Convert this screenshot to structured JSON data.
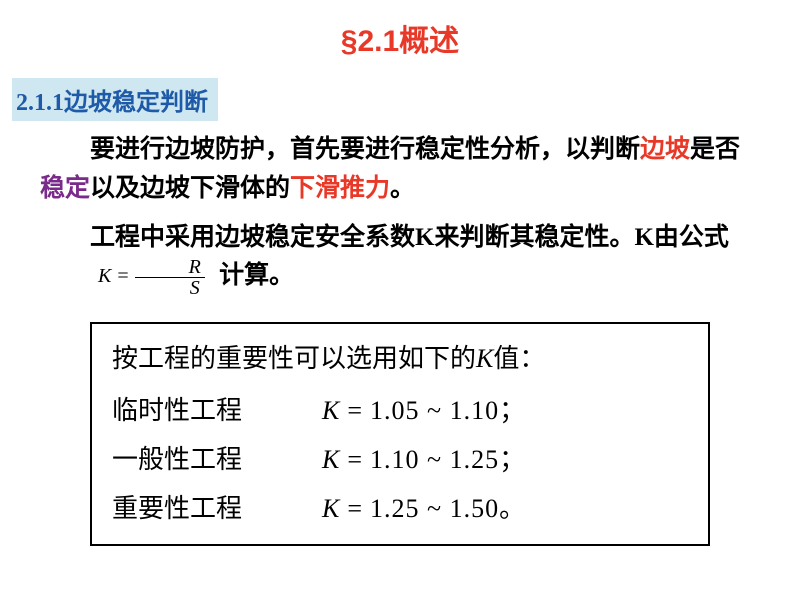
{
  "colors": {
    "title_red": "#e83828",
    "subtitle_bg": "#cfe7f0",
    "subtitle_text": "#1e5aa8",
    "highlight_red": "#e83828",
    "highlight_purple": "#7a2a8a",
    "body_text": "#000000"
  },
  "fonts": {
    "title_size": 30,
    "subtitle_size": 24,
    "body_size": 25,
    "formula_size": 20,
    "table_size": 26
  },
  "title": "§2.1概述",
  "subtitle": "2.1.1边坡稳定判断",
  "p1": {
    "t1": "要进行边坡防护，首先要进行稳定性分析，以判断",
    "h1": "边坡",
    "t2": "是否",
    "h2": "稳定",
    "t3": "以及边坡下滑体的",
    "h3": "下滑推力",
    "t4": "。"
  },
  "p2": {
    "t1": "工程中采用边坡稳定安全系数K来判断其稳定性。K由公式",
    "t2": "计算。"
  },
  "formula": {
    "lhs": "K",
    "num": "R",
    "den": "S"
  },
  "table": {
    "header_t1": "按工程的重要性可以选用如下的 ",
    "header_k": "K",
    "header_t2": " 值：",
    "rows": [
      {
        "label": "临时性工程",
        "k": "K",
        "range": "1.05 ~ 1.10",
        "tail": "；"
      },
      {
        "label": "一般性工程",
        "k": "K",
        "range": "1.10 ~ 1.25",
        "tail": "；"
      },
      {
        "label": "重要性工程",
        "k": "K",
        "range": "1.25 ~ 1.50",
        "tail": "。"
      }
    ]
  }
}
